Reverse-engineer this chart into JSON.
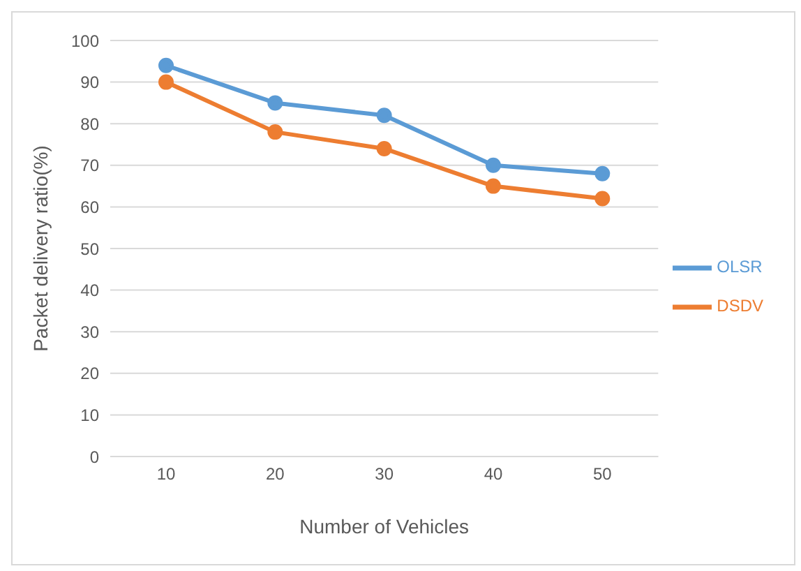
{
  "chart_data": {
    "type": "line",
    "xlabel": "Number of Vehicles",
    "ylabel": "Packet delivery ratio(%)",
    "categories": [
      "10",
      "20",
      "30",
      "40",
      "50"
    ],
    "series": [
      {
        "name": "OLSR",
        "color": "#5b9bd5",
        "values": [
          94,
          85,
          82,
          70,
          68
        ]
      },
      {
        "name": "DSDV",
        "color": "#ed7d31",
        "values": [
          90,
          78,
          74,
          65,
          62
        ]
      }
    ],
    "ylim": [
      0,
      100
    ],
    "yticks": [
      0,
      10,
      20,
      30,
      40,
      50,
      60,
      70,
      80,
      90,
      100
    ],
    "grid": "y",
    "legend": "right",
    "marker": "circle"
  }
}
